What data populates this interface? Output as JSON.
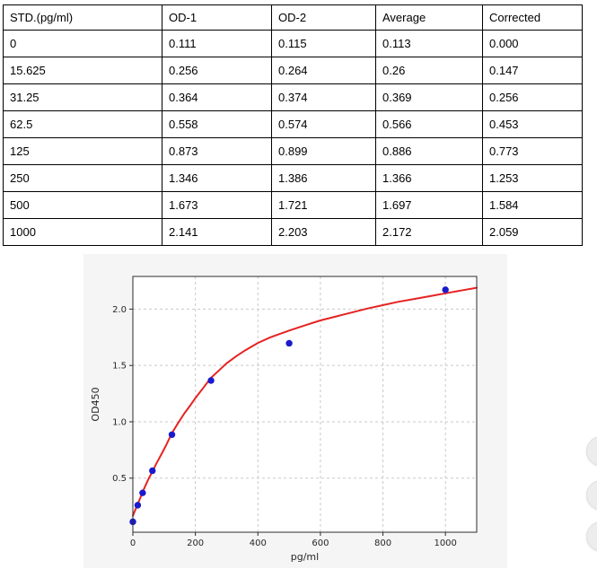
{
  "table": {
    "headers": [
      "STD.(pg/ml)",
      "OD-1",
      "OD-2",
      "Average",
      "Corrected"
    ],
    "rows": [
      [
        "0",
        "0.111",
        "0.115",
        "0.113",
        "0.000"
      ],
      [
        "15.625",
        "0.256",
        "0.264",
        "0.26",
        "0.147"
      ],
      [
        "31.25",
        "0.364",
        "0.374",
        "0.369",
        "0.256"
      ],
      [
        "62.5",
        "0.558",
        "0.574",
        "0.566",
        "0.453"
      ],
      [
        "125",
        "0.873",
        "0.899",
        "0.886",
        "0.773"
      ],
      [
        "250",
        "1.346",
        "1.386",
        "1.366",
        "1.253"
      ],
      [
        "500",
        "1.673",
        "1.721",
        "1.697",
        "1.584"
      ],
      [
        "1000",
        "2.141",
        "2.203",
        "2.172",
        "2.059"
      ]
    ]
  },
  "chart_data": {
    "type": "scatter",
    "title": "",
    "xlabel": "pg/ml",
    "ylabel": "OD450",
    "xlim": [
      0,
      1100
    ],
    "ylim": [
      0.02,
      2.29
    ],
    "xticks": [
      0,
      200,
      400,
      600,
      800,
      1000
    ],
    "yticks": [
      0.5,
      1.0,
      1.5,
      2.0
    ],
    "grid": "dashed",
    "legend": "none",
    "series": [
      {
        "name": "standard-points",
        "type": "scatter",
        "x": [
          0,
          15.625,
          31.25,
          62.5,
          125,
          250,
          500,
          1000
        ],
        "y": [
          0.113,
          0.26,
          0.369,
          0.566,
          0.886,
          1.366,
          1.697,
          2.172
        ],
        "color": "#1a1acd"
      },
      {
        "name": "fit-curve",
        "type": "line",
        "color": "#e62222",
        "samples": [
          [
            0,
            0.165
          ],
          [
            8,
            0.22
          ],
          [
            16,
            0.275
          ],
          [
            24,
            0.327
          ],
          [
            31,
            0.375
          ],
          [
            40,
            0.432
          ],
          [
            50,
            0.492
          ],
          [
            62,
            0.556
          ],
          [
            75,
            0.628
          ],
          [
            90,
            0.705
          ],
          [
            105,
            0.785
          ],
          [
            125,
            0.9
          ],
          [
            145,
            0.99
          ],
          [
            165,
            1.075
          ],
          [
            185,
            1.15
          ],
          [
            200,
            1.21
          ],
          [
            225,
            1.3
          ],
          [
            250,
            1.39
          ],
          [
            275,
            1.455
          ],
          [
            300,
            1.52
          ],
          [
            330,
            1.58
          ],
          [
            360,
            1.635
          ],
          [
            400,
            1.7
          ],
          [
            440,
            1.75
          ],
          [
            480,
            1.79
          ],
          [
            500,
            1.81
          ],
          [
            550,
            1.855
          ],
          [
            600,
            1.9
          ],
          [
            650,
            1.935
          ],
          [
            700,
            1.97
          ],
          [
            750,
            2.005
          ],
          [
            800,
            2.035
          ],
          [
            850,
            2.065
          ],
          [
            900,
            2.09
          ],
          [
            950,
            2.115
          ],
          [
            1000,
            2.14
          ],
          [
            1050,
            2.165
          ],
          [
            1100,
            2.19
          ]
        ]
      }
    ],
    "colors": {
      "figure_bg": "#f5f5f5",
      "plot_bg": "#ffffff",
      "grid": "#c9c9c9",
      "spine": "#2b2b2b",
      "tick_text": "#262626"
    }
  }
}
